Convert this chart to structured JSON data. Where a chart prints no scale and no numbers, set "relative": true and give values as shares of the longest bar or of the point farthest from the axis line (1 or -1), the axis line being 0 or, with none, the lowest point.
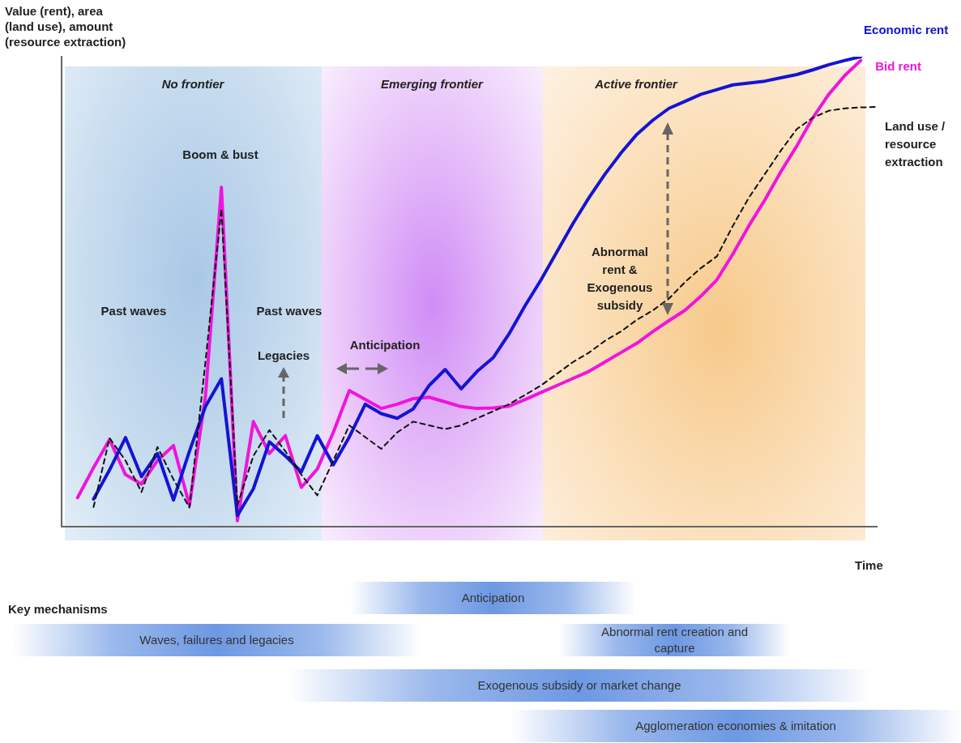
{
  "chart_data": [
    {
      "type": "line",
      "relative": true,
      "ylabel": "Value (rent), area (land use), amount (resource extraction)",
      "xlabel": "Time",
      "marker": "none",
      "categories": [
        null,
        null,
        null,
        null,
        null,
        null,
        null,
        null,
        null,
        null,
        null,
        null,
        null,
        null,
        null,
        null,
        null,
        null,
        null,
        null,
        null,
        null,
        null,
        null,
        null,
        null,
        null,
        null,
        null,
        null,
        null,
        null,
        null,
        null,
        null,
        null,
        null,
        null,
        null,
        null,
        null,
        null,
        null,
        null,
        null,
        null,
        null,
        null,
        null,
        null,
        null,
        null
      ],
      "series": [
        {
          "name": "Economic rent",
          "color": "#1414d2",
          "line_style": "solid",
          "values": [
            null,
            null,
            0.058,
            0.12,
            0.189,
            0.106,
            0.155,
            0.056,
            0.16,
            0.255,
            0.314,
            0.023,
            0.08,
            0.18,
            0.15,
            0.116,
            0.193,
            0.131,
            0.19,
            0.26,
            0.24,
            0.23,
            0.25,
            0.3,
            0.334,
            0.293,
            0.33,
            0.359,
            0.41,
            0.47,
            0.525,
            0.585,
            0.645,
            0.7,
            0.75,
            0.795,
            0.835,
            0.865,
            0.89,
            0.905,
            0.92,
            0.93,
            0.94,
            0.944,
            0.948,
            0.955,
            0.962,
            0.972,
            0.983,
            0.992,
            1.0,
            null
          ]
        },
        {
          "name": "Bid rent",
          "color": "#f014dc",
          "line_style": "solid",
          "values": [
            null,
            0.061,
            0.125,
            0.185,
            0.11,
            0.09,
            0.14,
            0.172,
            0.045,
            0.276,
            0.722,
            0.012,
            0.223,
            0.155,
            0.193,
            0.083,
            0.122,
            0.2,
            0.289,
            0.27,
            0.251,
            0.26,
            0.272,
            0.275,
            0.265,
            0.255,
            0.251,
            0.252,
            0.256,
            0.27,
            0.285,
            0.3,
            0.315,
            0.33,
            0.35,
            0.37,
            0.39,
            0.415,
            0.438,
            0.46,
            0.49,
            0.525,
            0.58,
            0.64,
            0.695,
            0.755,
            0.81,
            0.87,
            0.92,
            0.96,
            0.992,
            null
          ]
        },
        {
          "name": "Land use / resource extraction",
          "color": "#111111",
          "line_style": "dashed",
          "values": [
            null,
            null,
            0.041,
            0.188,
            0.14,
            0.073,
            0.169,
            0.1,
            0.04,
            0.35,
            0.676,
            0.045,
            0.15,
            0.205,
            0.16,
            0.11,
            0.066,
            0.14,
            0.215,
            0.19,
            0.165,
            0.2,
            0.223,
            0.215,
            0.207,
            0.215,
            0.23,
            0.245,
            0.26,
            0.28,
            0.3,
            0.325,
            0.35,
            0.37,
            0.395,
            0.415,
            0.44,
            0.46,
            0.485,
            0.52,
            0.55,
            0.575,
            0.64,
            0.7,
            0.75,
            0.8,
            0.846,
            0.87,
            0.885,
            0.89,
            0.892,
            0.893
          ]
        }
      ],
      "annotations": [
        "No frontier",
        "Emerging frontier",
        "Active frontier",
        "Past waves",
        "Boom & bust",
        "Past waves",
        "Legacies",
        "Anticipation",
        "Abnormal rent & Exogenous subsidy"
      ]
    },
    {
      "type": "other",
      "title": "Key mechanisms",
      "annotations": [
        "Anticipation",
        "Waves, failures  and legacies",
        "Abnormal rent creation and capture",
        "Exogenous subsidy or market change",
        "Agglomeration economies & imitation"
      ]
    }
  ]
}
